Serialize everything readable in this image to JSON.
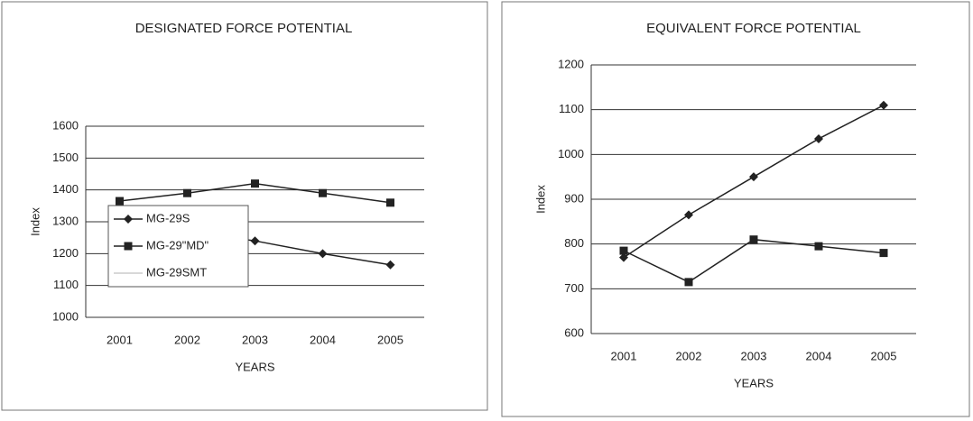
{
  "chart_data": [
    {
      "type": "line",
      "title": "DESIGNATED FORCE POTENTIAL",
      "x_label": "YEARS",
      "y_label": "Index",
      "categories": [
        "2001",
        "2002",
        "2003",
        "2004",
        "2005"
      ],
      "series": [
        {
          "name": "MG-29S",
          "color": "#222222",
          "marker": "diamond",
          "values": [
            1310,
            1270,
            1240,
            1200,
            1165
          ]
        },
        {
          "name": "MG-29\"MD\"",
          "color": "#222222",
          "marker": "square",
          "values": [
            1365,
            1390,
            1420,
            1390,
            1360
          ]
        },
        {
          "name": "MG-29SMT",
          "color": "#cccccc",
          "marker": "none",
          "values": [
            null,
            null,
            null,
            null,
            null
          ]
        }
      ],
      "ylim": [
        1000,
        1600
      ],
      "yticks": [
        1000,
        1100,
        1200,
        1300,
        1400,
        1500,
        1600
      ],
      "grid": true,
      "legend": "left"
    },
    {
      "type": "line",
      "title": "EQUIVALENT FORCE POTENTIAL",
      "x_label": "YEARS",
      "y_label": "Index",
      "categories": [
        "2001",
        "2002",
        "2003",
        "2004",
        "2005"
      ],
      "series": [
        {
          "color": "#222222",
          "marker": "diamond",
          "values": [
            770,
            865,
            950,
            1035,
            1110
          ]
        },
        {
          "color": "#222222",
          "marker": "square",
          "values": [
            785,
            715,
            810,
            795,
            780
          ]
        }
      ],
      "ylim": [
        600,
        1200
      ],
      "yticks": [
        600,
        700,
        800,
        900,
        1000,
        1100,
        1200
      ],
      "grid": true
    }
  ]
}
